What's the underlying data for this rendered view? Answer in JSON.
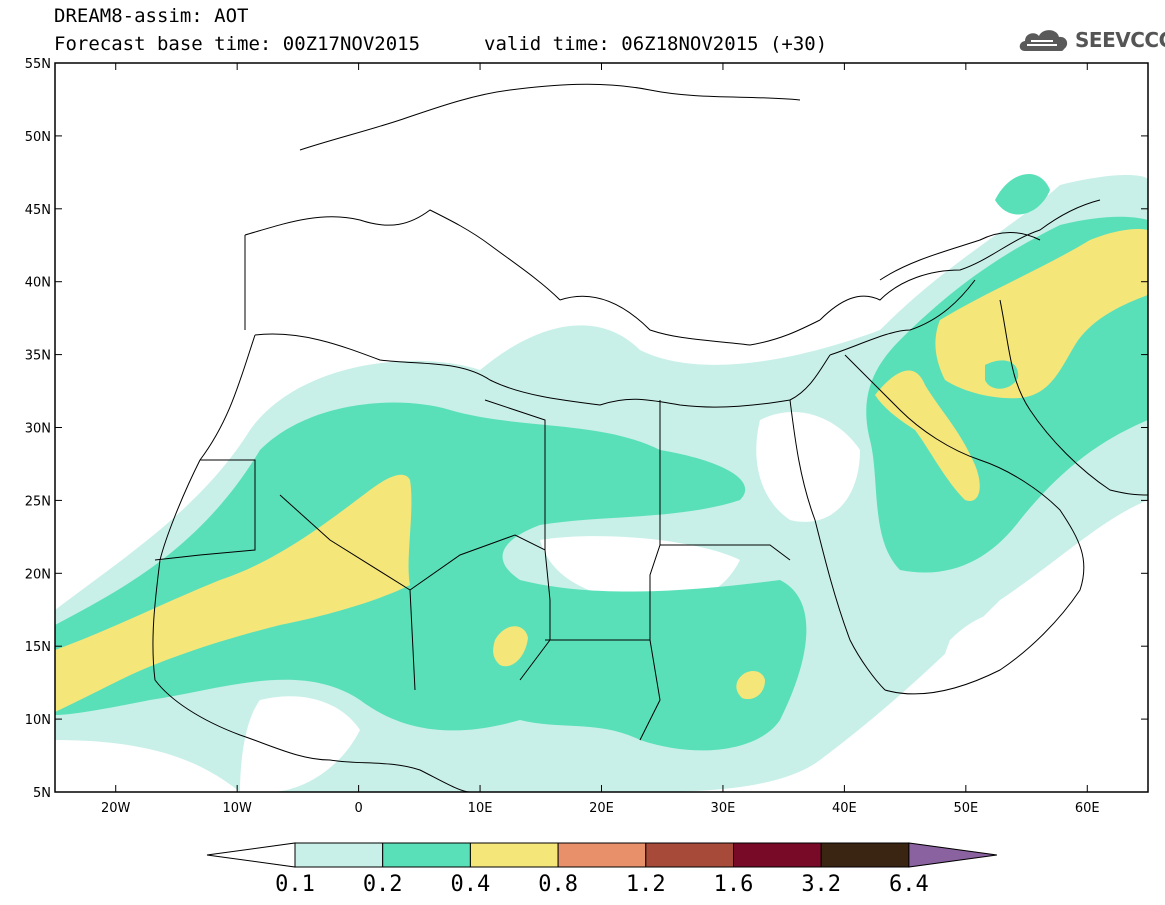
{
  "header": {
    "title": "DREAM8-assim: AOT",
    "base_time": "Forecast base time: 00Z17NOV2015",
    "valid_time": "valid time: 06Z18NOV2015 (+30)"
  },
  "logo": {
    "name": "SEEVCCC",
    "icon": "cloud-icon",
    "color": "#555555"
  },
  "map": {
    "lon_range": [
      -25,
      65
    ],
    "lat_range": [
      5,
      55
    ],
    "lat_ticks": [
      "5N",
      "10N",
      "15N",
      "20N",
      "25N",
      "30N",
      "35N",
      "40N",
      "45N",
      "50N",
      "55N"
    ],
    "lon_ticks": [
      "20W",
      "10W",
      "0",
      "10E",
      "20E",
      "30E",
      "40E",
      "50E",
      "60E"
    ],
    "background": "#ffffff"
  },
  "colorbar": {
    "levels": [
      "0.1",
      "0.2",
      "0.4",
      "0.8",
      "1.2",
      "1.6",
      "3.2",
      "6.4"
    ],
    "colors": [
      "#c8f0e8",
      "#5ae0b8",
      "#f5e67a",
      "#e8906a",
      "#a84a3a",
      "#780a28",
      "#3a2412",
      "#8a62a0"
    ],
    "below_color": "#ffffff"
  }
}
